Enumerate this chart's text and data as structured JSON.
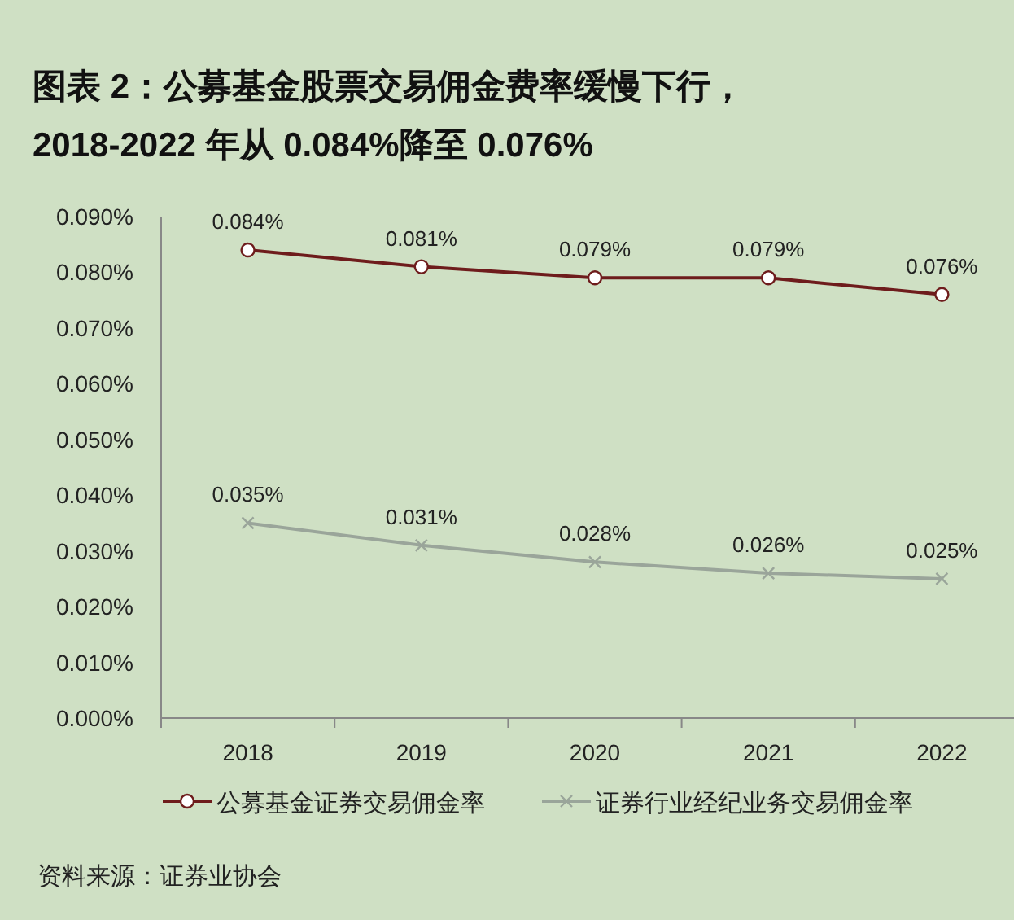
{
  "chart_data": {
    "type": "line",
    "title": "图表 2：公募基金股票交易佣金费率缓慢下行，",
    "subtitle": "2018-2022 年从 0.084%降至 0.076%",
    "categories": [
      "2018",
      "2019",
      "2020",
      "2021",
      "2022"
    ],
    "series": [
      {
        "name": "公募基金证券交易佣金率",
        "color": "#6e1c1c",
        "marker": "circle",
        "values": [
          0.084,
          0.081,
          0.079,
          0.079,
          0.076
        ],
        "value_labels": [
          "0.084%",
          "0.081%",
          "0.079%",
          "0.079%",
          "0.076%"
        ]
      },
      {
        "name": "证券行业经纪业务交易佣金率",
        "color": "#9aa59a",
        "marker": "cross",
        "values": [
          0.035,
          0.031,
          0.028,
          0.026,
          0.025
        ],
        "value_labels": [
          "0.035%",
          "0.031%",
          "0.028%",
          "0.026%",
          "0.025%"
        ]
      }
    ],
    "ylim": [
      0,
      0.09
    ],
    "yticks": [
      {
        "value": 0,
        "label": "0.000%"
      },
      {
        "value": 0.01,
        "label": "0.010%"
      },
      {
        "value": 0.02,
        "label": "0.020%"
      },
      {
        "value": 0.03,
        "label": "0.030%"
      },
      {
        "value": 0.04,
        "label": "0.040%"
      },
      {
        "value": 0.05,
        "label": "0.050%"
      },
      {
        "value": 0.06,
        "label": "0.060%"
      },
      {
        "value": 0.07,
        "label": "0.070%"
      },
      {
        "value": 0.08,
        "label": "0.080%"
      },
      {
        "value": 0.09,
        "label": "0.090%"
      }
    ],
    "grid": false,
    "legend": "bottom",
    "line_style": "solid",
    "annotations": [
      "资料来源：证券业协会"
    ]
  }
}
